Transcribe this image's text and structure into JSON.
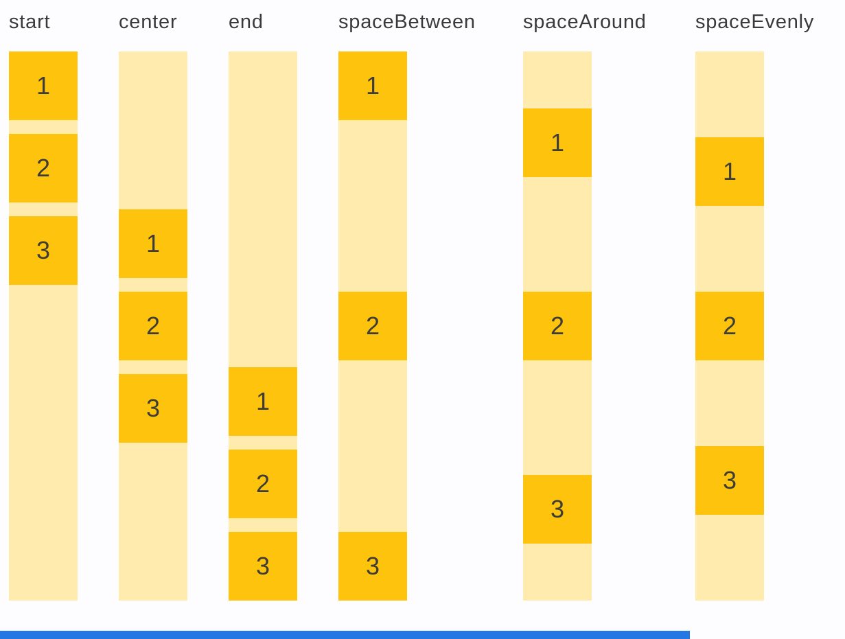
{
  "colors": {
    "box": "#FDC30D",
    "track": "#FEEBAD",
    "label_text": "#3A3A3A",
    "number_text": "#3E3C38",
    "bottom_bar": "#2478E4",
    "page_bg": "#FDFDFF"
  },
  "columns": [
    {
      "label": "start",
      "justify": "start",
      "items": [
        "1",
        "2",
        "3"
      ]
    },
    {
      "label": "center",
      "justify": "center",
      "items": [
        "1",
        "2",
        "3"
      ]
    },
    {
      "label": "end",
      "justify": "end",
      "items": [
        "1",
        "2",
        "3"
      ]
    },
    {
      "label": "spaceBetween",
      "justify": "spaceBetween",
      "items": [
        "1",
        "2",
        "3"
      ]
    },
    {
      "label": "spaceAround",
      "justify": "spaceAround",
      "items": [
        "1",
        "2",
        "3"
      ]
    },
    {
      "label": "spaceEvenly",
      "justify": "spaceEvenly",
      "items": [
        "1",
        "2",
        "3"
      ]
    }
  ]
}
